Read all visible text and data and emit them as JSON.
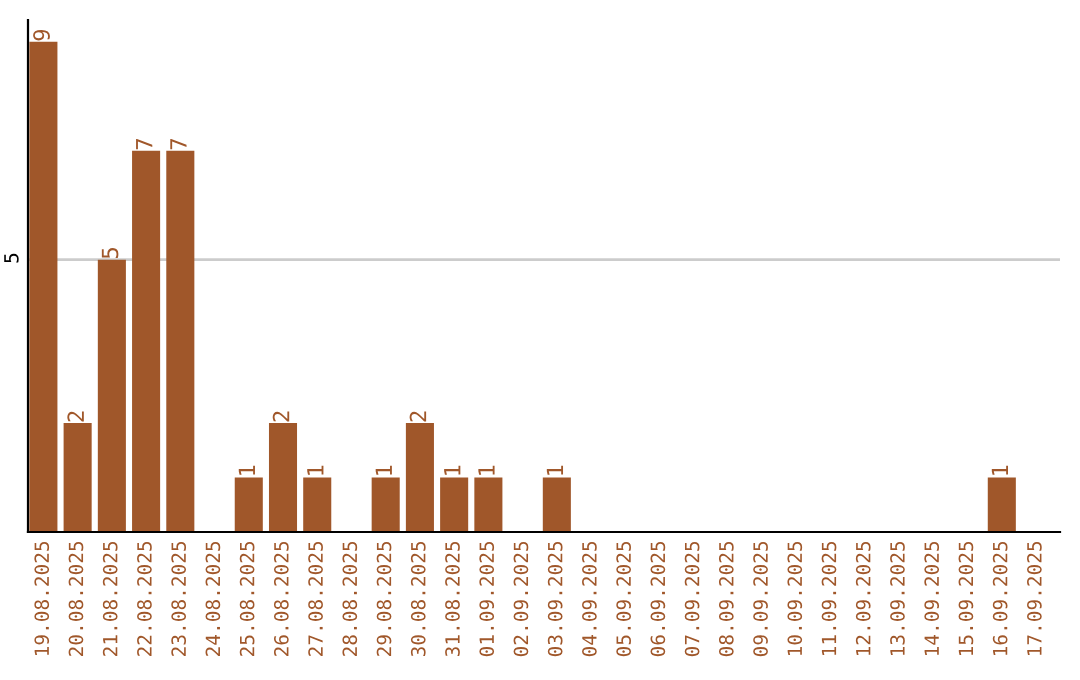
{
  "chart_data": {
    "type": "bar",
    "categories": [
      "19.08.2025",
      "20.08.2025",
      "21.08.2025",
      "22.08.2025",
      "23.08.2025",
      "24.08.2025",
      "25.08.2025",
      "26.08.2025",
      "27.08.2025",
      "28.08.2025",
      "29.08.2025",
      "30.08.2025",
      "31.08.2025",
      "01.09.2025",
      "02.09.2025",
      "03.09.2025",
      "04.09.2025",
      "05.09.2025",
      "06.09.2025",
      "07.09.2025",
      "08.09.2025",
      "09.09.2025",
      "10.09.2025",
      "11.09.2025",
      "12.09.2025",
      "13.09.2025",
      "14.09.2025",
      "15.09.2025",
      "16.09.2025",
      "17.09.2025"
    ],
    "values": [
      9,
      2,
      5,
      7,
      7,
      0,
      1,
      2,
      1,
      0,
      1,
      2,
      1,
      1,
      0,
      1,
      0,
      0,
      0,
      0,
      0,
      0,
      0,
      0,
      0,
      0,
      0,
      0,
      1,
      0
    ],
    "value_labels": [
      "9",
      "2",
      "5",
      "7",
      "7",
      null,
      "1",
      "2",
      "1",
      null,
      "1",
      "2",
      "1",
      "1",
      null,
      "1",
      null,
      null,
      null,
      null,
      null,
      null,
      null,
      null,
      null,
      null,
      null,
      null,
      "1",
      null
    ],
    "color": "#a0572a",
    "ylim": [
      0,
      9.4
    ],
    "yticks": [
      5
    ],
    "grid": "y"
  }
}
